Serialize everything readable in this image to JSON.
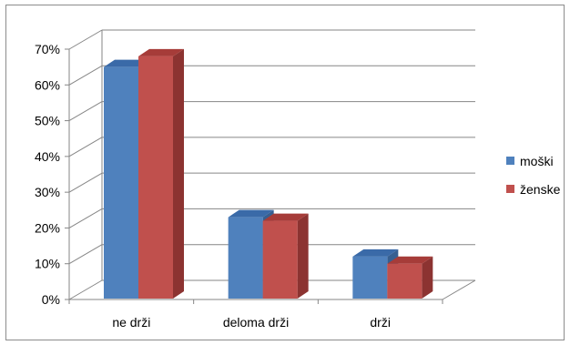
{
  "chart_data": {
    "type": "bar",
    "style": "3d-clustered-column",
    "categories": [
      "ne drži",
      "deloma drži",
      "drži"
    ],
    "series": [
      {
        "name": "moški",
        "values": [
          65,
          23,
          12
        ],
        "color": "#4f81bd",
        "top": "#3a6aa8",
        "side": "#365f91"
      },
      {
        "name": "ženske",
        "values": [
          68,
          22,
          10
        ],
        "color": "#c0504d",
        "top": "#a63c39",
        "side": "#8c3331"
      }
    ],
    "yticks": [
      "0%",
      "10%",
      "20%",
      "30%",
      "40%",
      "50%",
      "60%",
      "70%"
    ],
    "ylim": [
      0,
      70
    ],
    "grid": true,
    "legend_position": "right"
  }
}
